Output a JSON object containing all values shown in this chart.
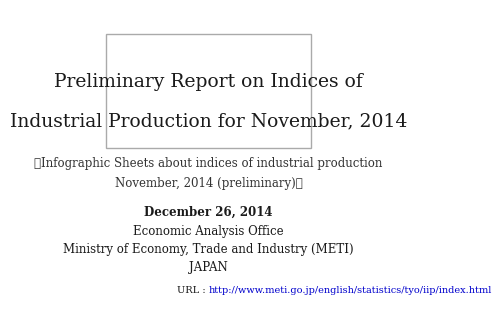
{
  "bg_color": "#ffffff",
  "box_color": "#ffffff",
  "box_edge_color": "#aaaaaa",
  "title_line1": "Preliminary Report on Indices of",
  "title_line2": "Industrial Production for November, 2014",
  "title_fontsize": 13.5,
  "title_color": "#1a1a1a",
  "subtitle_line1": "～Infographic Sheets about indices of industrial production",
  "subtitle_line2": "November, 2014 (preliminary)～",
  "subtitle_fontsize": 8.5,
  "subtitle_color": "#333333",
  "info_line1": "December 26, 2014",
  "info_line2": "Economic Analysis Office",
  "info_line3": "Ministry of Economy, Trade and Industry (METI)",
  "info_line4": "JAPAN",
  "info_fontsize": 8.5,
  "info_color": "#1a1a1a",
  "url_prefix": "URL : ",
  "url_text": "http://www.meti.go.jp/english/statistics/tyo/iip/index.html",
  "url_fontsize": 7.0,
  "url_color": "#0000cc",
  "url_prefix_color": "#1a1a1a"
}
